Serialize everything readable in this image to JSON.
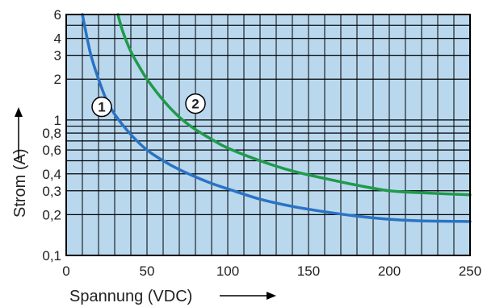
{
  "chart_data": {
    "type": "line",
    "xlabel": "Spannung (VDC)",
    "ylabel": "Strom (A)",
    "xlim": [
      0,
      250
    ],
    "ylim": [
      0.1,
      6
    ],
    "yscale": "log",
    "grid": true,
    "x_ticks": [
      0,
      50,
      100,
      150,
      200,
      250
    ],
    "x_tick_labels": [
      "0",
      "50",
      "100",
      "150",
      "200",
      "250"
    ],
    "y_ticks": [
      0.1,
      0.2,
      0.3,
      0.4,
      0.6,
      0.8,
      1,
      2,
      3,
      4,
      6
    ],
    "y_tick_labels": [
      "0,1",
      "0,2",
      "0,3",
      "0,4",
      "0,6",
      "0,8",
      "1",
      "2",
      "3",
      "4",
      "6"
    ],
    "series": [
      {
        "marker": "1",
        "color": "#2a73c4",
        "x": [
          10,
          15,
          20,
          25,
          30,
          40,
          50,
          60,
          70,
          80,
          90,
          100,
          120,
          140,
          160,
          180,
          200,
          220,
          250
        ],
        "y": [
          6,
          3.1,
          2.0,
          1.4,
          1.1,
          0.78,
          0.6,
          0.5,
          0.43,
          0.38,
          0.34,
          0.31,
          0.26,
          0.23,
          0.21,
          0.195,
          0.185,
          0.18,
          0.178
        ]
      },
      {
        "marker": "2",
        "color": "#1f9a4a",
        "x": [
          32,
          35,
          40,
          45,
          50,
          60,
          70,
          80,
          90,
          100,
          120,
          140,
          160,
          180,
          200,
          220,
          250
        ],
        "y": [
          6,
          4.5,
          3.2,
          2.5,
          2.0,
          1.4,
          1.05,
          0.85,
          0.72,
          0.62,
          0.5,
          0.42,
          0.37,
          0.33,
          0.3,
          0.29,
          0.28
        ]
      }
    ]
  }
}
